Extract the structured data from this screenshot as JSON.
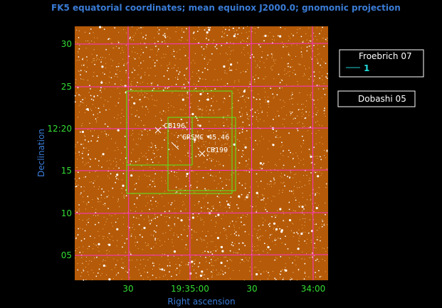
{
  "title": "FK5 equatorial coordinates; mean equinox J2000.0; gnomonic projection",
  "x_axis": {
    "label": "Right ascension",
    "ticks": [
      "30",
      "19:35:00",
      "30",
      "34:00"
    ]
  },
  "y_axis": {
    "label": "Declination",
    "ticks": [
      "30",
      "25",
      "12:20",
      "15",
      "10",
      "05"
    ]
  },
  "annotations": [
    "CB196",
    "GRSMC 45.46",
    "CB199"
  ],
  "legend": [
    {
      "title": "Froebrich 07",
      "entry": "1"
    },
    {
      "title": "Dobashi 05"
    }
  ]
}
